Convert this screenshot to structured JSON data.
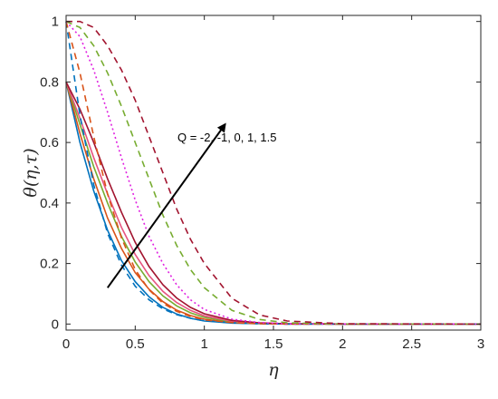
{
  "chart_data": {
    "type": "line",
    "title": "",
    "xlabel": "η",
    "ylabel": "θ(η,τ)",
    "xlim": [
      0,
      3
    ],
    "ylim": [
      -0.02,
      1.02
    ],
    "xticks": [
      "0",
      "0.5",
      "1",
      "1.5",
      "2",
      "2.5",
      "3"
    ],
    "yticks": [
      "0",
      "0.2",
      "0.4",
      "0.6",
      "0.8",
      "1"
    ],
    "grid": false,
    "legend": "none",
    "annotation": {
      "text": "Q = -2, -1, 0, 1, 1.5",
      "arrow_from": [
        0.3,
        0.12
      ],
      "arrow_to": [
        1.15,
        0.66
      ]
    },
    "series": [
      {
        "color": "#0072BD",
        "style": "solid",
        "x": [
          0,
          0.1,
          0.2,
          0.3,
          0.4,
          0.5,
          0.6,
          0.7,
          0.8,
          0.9,
          1.0,
          1.2,
          1.4,
          1.6,
          2.0,
          3.0
        ],
        "y": [
          0.8,
          0.6,
          0.44,
          0.31,
          0.21,
          0.14,
          0.09,
          0.055,
          0.033,
          0.019,
          0.01,
          0.003,
          0.001,
          0,
          0,
          0
        ]
      },
      {
        "color": "#D95319",
        "style": "solid",
        "x": [
          0,
          0.1,
          0.2,
          0.3,
          0.4,
          0.5,
          0.6,
          0.7,
          0.8,
          0.9,
          1.0,
          1.2,
          1.4,
          1.6,
          2.0,
          3.0
        ],
        "y": [
          0.8,
          0.63,
          0.48,
          0.35,
          0.25,
          0.17,
          0.115,
          0.074,
          0.046,
          0.028,
          0.016,
          0.005,
          0.002,
          0,
          0,
          0
        ]
      },
      {
        "color": "#77AC30",
        "style": "solid",
        "x": [
          0,
          0.1,
          0.2,
          0.3,
          0.4,
          0.5,
          0.6,
          0.7,
          0.8,
          0.9,
          1.0,
          1.2,
          1.4,
          1.6,
          2.0,
          3.0
        ],
        "y": [
          0.8,
          0.66,
          0.52,
          0.4,
          0.29,
          0.205,
          0.14,
          0.093,
          0.06,
          0.037,
          0.022,
          0.007,
          0.002,
          0.001,
          0,
          0
        ]
      },
      {
        "color": "#E75480",
        "style": "solid",
        "x": [
          0,
          0.1,
          0.2,
          0.3,
          0.4,
          0.5,
          0.6,
          0.7,
          0.8,
          0.9,
          1.0,
          1.2,
          1.4,
          1.6,
          2.0,
          3.0
        ],
        "y": [
          0.8,
          0.68,
          0.55,
          0.43,
          0.32,
          0.23,
          0.16,
          0.108,
          0.071,
          0.045,
          0.027,
          0.009,
          0.003,
          0.001,
          0,
          0
        ]
      },
      {
        "color": "#A2142F",
        "style": "solid",
        "x": [
          0,
          0.1,
          0.2,
          0.3,
          0.4,
          0.5,
          0.6,
          0.7,
          0.8,
          0.9,
          1.0,
          1.2,
          1.4,
          1.6,
          2.0,
          3.0
        ],
        "y": [
          0.8,
          0.71,
          0.6,
          0.48,
          0.37,
          0.27,
          0.19,
          0.13,
          0.086,
          0.055,
          0.034,
          0.012,
          0.004,
          0.001,
          0,
          0
        ]
      },
      {
        "color": "#0072BD",
        "style": "dashed",
        "x": [
          0,
          0.1,
          0.2,
          0.3,
          0.4,
          0.5,
          0.6,
          0.7,
          0.8,
          0.9,
          1.0,
          1.2,
          1.4,
          1.6,
          2.0,
          3.0
        ],
        "y": [
          1.0,
          0.69,
          0.46,
          0.3,
          0.195,
          0.125,
          0.08,
          0.05,
          0.031,
          0.019,
          0.011,
          0.004,
          0.001,
          0,
          0,
          0
        ]
      },
      {
        "color": "#D95319",
        "style": "dashed",
        "x": [
          0,
          0.1,
          0.2,
          0.3,
          0.4,
          0.5,
          0.6,
          0.7,
          0.8,
          0.9,
          1.0,
          1.2,
          1.4,
          1.6,
          2.0,
          3.0
        ],
        "y": [
          1.0,
          0.83,
          0.62,
          0.43,
          0.285,
          0.18,
          0.113,
          0.069,
          0.042,
          0.025,
          0.014,
          0.005,
          0.001,
          0,
          0,
          0
        ]
      },
      {
        "color": "#E020E0",
        "style": "dotted",
        "x": [
          0,
          0.1,
          0.2,
          0.3,
          0.4,
          0.5,
          0.6,
          0.7,
          0.8,
          0.9,
          1.0,
          1.2,
          1.4,
          1.6,
          2.0,
          3.0
        ],
        "y": [
          1.0,
          0.95,
          0.84,
          0.7,
          0.55,
          0.41,
          0.29,
          0.2,
          0.13,
          0.08,
          0.048,
          0.016,
          0.005,
          0.001,
          0,
          0
        ]
      },
      {
        "color": "#77AC30",
        "style": "dashed",
        "x": [
          0,
          0.1,
          0.2,
          0.3,
          0.4,
          0.5,
          0.6,
          0.7,
          0.8,
          0.9,
          1.0,
          1.2,
          1.4,
          1.6,
          2.0,
          3.0
        ],
        "y": [
          1.0,
          0.98,
          0.92,
          0.83,
          0.72,
          0.6,
          0.48,
          0.36,
          0.26,
          0.18,
          0.12,
          0.045,
          0.015,
          0.004,
          0,
          0
        ]
      },
      {
        "color": "#A2142F",
        "style": "dashed",
        "x": [
          0,
          0.1,
          0.2,
          0.3,
          0.4,
          0.5,
          0.6,
          0.7,
          0.8,
          0.9,
          1.0,
          1.2,
          1.4,
          1.6,
          2.0,
          3.0
        ],
        "y": [
          1.0,
          1.0,
          0.98,
          0.92,
          0.84,
          0.74,
          0.62,
          0.5,
          0.38,
          0.28,
          0.2,
          0.085,
          0.03,
          0.01,
          0.001,
          0
        ]
      }
    ]
  }
}
